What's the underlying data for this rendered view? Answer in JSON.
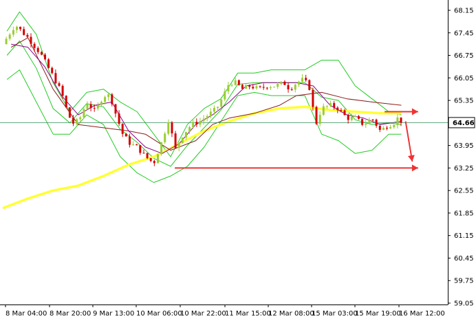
{
  "chart_data": {
    "type": "candlestick",
    "title": "",
    "xlabel": "",
    "ylabel": "",
    "ylim": [
      59.05,
      68.15
    ],
    "y_ticks": [
      68.15,
      67.45,
      66.75,
      66.05,
      65.35,
      64.66,
      63.95,
      63.25,
      62.55,
      61.85,
      61.15,
      60.45,
      59.75,
      59.05
    ],
    "x_ticks": [
      "8 Mar 04:00",
      "8 Mar 20:00",
      "9 Mar 13:00",
      "10 Mar 06:00",
      "10 Mar 22:00",
      "11 Mar 15:00",
      "12 Mar 08:00",
      "15 Mar 03:00",
      "15 Mar 19:00",
      "16 Mar 12:00"
    ],
    "current_price": "64.66",
    "current_price_value": 64.66,
    "grid": false,
    "colors": {
      "bull_candle": "#9ACD32",
      "bear_candle": "#D40000",
      "yellow_ma": "#FFFF33",
      "bollinger": "#22CC22",
      "ma_dark_red": "#8B1A1A",
      "ma_purple": "#8B008B",
      "price_line": "#2E8B57",
      "arrows": "#EE3333"
    },
    "close_path": [
      [
        0,
        67.1
      ],
      [
        1.5,
        67.7
      ],
      [
        3,
        67.3
      ],
      [
        4.5,
        66.8
      ],
      [
        6,
        66.1
      ],
      [
        7,
        65.6
      ],
      [
        7.8,
        64.9
      ],
      [
        8.5,
        64.6
      ],
      [
        9.2,
        64.8
      ],
      [
        10,
        65.3
      ],
      [
        11,
        65.0
      ],
      [
        12,
        65.5
      ],
      [
        12.8,
        65.5
      ],
      [
        13.5,
        64.9
      ],
      [
        14.3,
        64.3
      ],
      [
        15.2,
        64.0
      ],
      [
        16,
        63.9
      ],
      [
        17,
        63.6
      ],
      [
        18,
        63.4
      ],
      [
        19,
        64.1
      ],
      [
        19.8,
        64.8
      ],
      [
        20.5,
        63.8
      ],
      [
        21.5,
        64.3
      ],
      [
        22.5,
        64.6
      ],
      [
        23.5,
        64.7
      ],
      [
        24.5,
        64.9
      ],
      [
        25.5,
        65.1
      ],
      [
        26.3,
        65.5
      ],
      [
        27,
        65.9
      ],
      [
        27.8,
        65.9
      ],
      [
        28.5,
        65.7
      ],
      [
        29.5,
        65.8
      ],
      [
        30.5,
        65.7
      ],
      [
        31.5,
        65.8
      ],
      [
        32.5,
        65.8
      ],
      [
        33.5,
        65.9
      ],
      [
        34.2,
        65.7
      ],
      [
        35,
        65.9
      ],
      [
        35.8,
        66.0
      ],
      [
        36.5,
        65.8
      ],
      [
        37.3,
        64.6
      ],
      [
        38,
        65.1
      ],
      [
        39,
        65.2
      ],
      [
        40,
        65.1
      ],
      [
        41,
        64.8
      ],
      [
        42,
        64.8
      ],
      [
        43,
        64.6
      ],
      [
        44,
        64.8
      ],
      [
        45,
        64.4
      ],
      [
        46,
        64.6
      ],
      [
        46.5,
        64.6
      ],
      [
        47,
        64.8
      ],
      [
        47.5,
        64.7
      ]
    ],
    "series": [
      {
        "values": [
          [
            0,
            62.0
          ],
          [
            3,
            62.3
          ],
          [
            6,
            62.55
          ],
          [
            9,
            62.7
          ],
          [
            12,
            63.0
          ],
          [
            15,
            63.35
          ],
          [
            18,
            63.6
          ],
          [
            21,
            64.0
          ],
          [
            24,
            64.4
          ],
          [
            27,
            64.7
          ],
          [
            30,
            64.95
          ],
          [
            33,
            65.1
          ],
          [
            36,
            65.15
          ],
          [
            39,
            65.05
          ],
          [
            42,
            65.0
          ],
          [
            45,
            64.95
          ],
          [
            47.5,
            64.95
          ]
        ]
      },
      {
        "values": [
          [
            1,
            67.0
          ],
          [
            3,
            67.3
          ],
          [
            6,
            65.7
          ],
          [
            9,
            64.6
          ],
          [
            12,
            64.5
          ],
          [
            15,
            64.4
          ],
          [
            17,
            64.3
          ],
          [
            20,
            63.8
          ],
          [
            23,
            64.1
          ],
          [
            25,
            64.6
          ],
          [
            27,
            64.8
          ],
          [
            30,
            64.95
          ],
          [
            33,
            65.2
          ],
          [
            35,
            65.5
          ],
          [
            38,
            65.6
          ],
          [
            41,
            65.4
          ],
          [
            44,
            65.3
          ],
          [
            47.5,
            65.2
          ]
        ]
      },
      {
        "values": [
          [
            1,
            67.1
          ],
          [
            3,
            67.0
          ],
          [
            5,
            66.4
          ],
          [
            7,
            65.5
          ],
          [
            9,
            64.9
          ],
          [
            11,
            65.2
          ],
          [
            13,
            65.3
          ],
          [
            15,
            64.4
          ],
          [
            17,
            63.9
          ],
          [
            19,
            63.7
          ],
          [
            21,
            64.0
          ],
          [
            23,
            64.6
          ],
          [
            25,
            64.9
          ],
          [
            27,
            65.3
          ],
          [
            29,
            65.8
          ],
          [
            31,
            65.9
          ],
          [
            33,
            65.9
          ],
          [
            35,
            65.9
          ],
          [
            37,
            65.8
          ],
          [
            39,
            65.2
          ],
          [
            41,
            64.9
          ],
          [
            43,
            64.8
          ],
          [
            45,
            64.6
          ],
          [
            47.5,
            64.7
          ]
        ]
      },
      {
        "values": [
          [
            0.5,
            67.5
          ],
          [
            2,
            68.1
          ],
          [
            4,
            67.4
          ],
          [
            6,
            65.9
          ],
          [
            8,
            65.0
          ],
          [
            10,
            65.6
          ],
          [
            12,
            65.7
          ],
          [
            14,
            65.3
          ],
          [
            16,
            65.0
          ],
          [
            18,
            64.3
          ],
          [
            20,
            63.6
          ],
          [
            22,
            64.6
          ],
          [
            24,
            65.1
          ],
          [
            26,
            65.4
          ],
          [
            28,
            66.2
          ],
          [
            30,
            66.2
          ],
          [
            32,
            66.3
          ],
          [
            34,
            66.3
          ],
          [
            36,
            66.3
          ],
          [
            38,
            66.6
          ],
          [
            40,
            66.6
          ],
          [
            42,
            65.8
          ],
          [
            44,
            65.4
          ],
          [
            46,
            65.0
          ],
          [
            47.5,
            64.9
          ]
        ]
      },
      {
        "values": [
          [
            0.5,
            66.0
          ],
          [
            2,
            66.3
          ],
          [
            4,
            65.3
          ],
          [
            6,
            64.3
          ],
          [
            8,
            64.3
          ],
          [
            10,
            64.9
          ],
          [
            12,
            64.6
          ],
          [
            14,
            63.6
          ],
          [
            16,
            63.1
          ],
          [
            18,
            62.8
          ],
          [
            20,
            63.0
          ],
          [
            22,
            63.3
          ],
          [
            24,
            63.9
          ],
          [
            26,
            64.7
          ],
          [
            28,
            65.5
          ],
          [
            30,
            65.6
          ],
          [
            32,
            65.5
          ],
          [
            34,
            65.5
          ],
          [
            36,
            65.5
          ],
          [
            38,
            64.3
          ],
          [
            40,
            64.1
          ],
          [
            42,
            63.7
          ],
          [
            44,
            63.8
          ],
          [
            46,
            64.3
          ],
          [
            47.5,
            64.3
          ]
        ]
      }
    ],
    "arrows": [
      {
        "from": [
          45.5,
          65.0
        ],
        "to": [
          49.5,
          65.0
        ]
      },
      {
        "from": [
          48.0,
          64.7
        ],
        "to": [
          48.8,
          63.45
        ]
      },
      {
        "from": [
          20.5,
          63.25
        ],
        "to": [
          49.5,
          63.25
        ]
      }
    ]
  }
}
